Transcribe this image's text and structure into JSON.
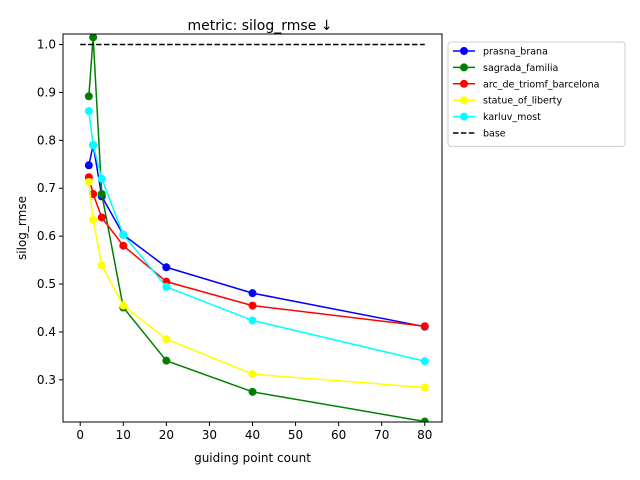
{
  "chart_data": {
    "type": "line",
    "title": "metric: silog_rmse ↓",
    "xlabel": "guiding point count",
    "ylabel": "silog_rmse",
    "xlim": [
      -4,
      84
    ],
    "ylim": [
      0.212,
      1.022
    ],
    "xticks": [
      0,
      10,
      20,
      30,
      40,
      50,
      60,
      70,
      80
    ],
    "yticks": [
      0.3,
      0.4,
      0.5,
      0.6,
      0.7,
      0.8,
      0.9,
      1.0
    ],
    "xtick_labels": [
      "0",
      "10",
      "20",
      "30",
      "40",
      "50",
      "60",
      "70",
      "80"
    ],
    "ytick_labels": [
      "0.3",
      "0.4",
      "0.5",
      "0.6",
      "0.7",
      "0.8",
      "0.9",
      "1.0"
    ],
    "grid": false,
    "legend_position": "outside-upper-right",
    "series": [
      {
        "name": "prasna_brana",
        "color": "#0000ff",
        "marker": "circle",
        "x": [
          2,
          3,
          5,
          10,
          20,
          40,
          80
        ],
        "y": [
          0.748,
          0.79,
          0.683,
          0.603,
          0.535,
          0.481,
          0.411
        ]
      },
      {
        "name": "sagrada_familia",
        "color": "#008000",
        "marker": "circle",
        "x": [
          2,
          3,
          5,
          10,
          20,
          40,
          80
        ],
        "y": [
          0.892,
          1.015,
          0.688,
          0.451,
          0.34,
          0.275,
          0.213
        ]
      },
      {
        "name": "arc_de_triomf_barcelona",
        "color": "#ff0000",
        "marker": "circle",
        "x": [
          2,
          3,
          5,
          10,
          20,
          40,
          80
        ],
        "y": [
          0.723,
          0.688,
          0.639,
          0.58,
          0.505,
          0.455,
          0.412
        ]
      },
      {
        "name": "statue_of_liberty",
        "color": "#ffff00",
        "marker": "circle",
        "x": [
          2,
          3,
          5,
          10,
          20,
          40,
          80
        ],
        "y": [
          0.713,
          0.634,
          0.539,
          0.455,
          0.385,
          0.312,
          0.284
        ]
      },
      {
        "name": "karluv_most",
        "color": "#00ffff",
        "marker": "circle",
        "x": [
          2,
          3,
          5,
          10,
          20,
          40,
          80
        ],
        "y": [
          0.861,
          0.79,
          0.72,
          0.603,
          0.494,
          0.424,
          0.339
        ]
      },
      {
        "name": "base",
        "color": "#000000",
        "marker": "none",
        "dash": "dashed",
        "x": [
          0,
          80
        ],
        "y": [
          1.0,
          1.0
        ]
      }
    ]
  }
}
